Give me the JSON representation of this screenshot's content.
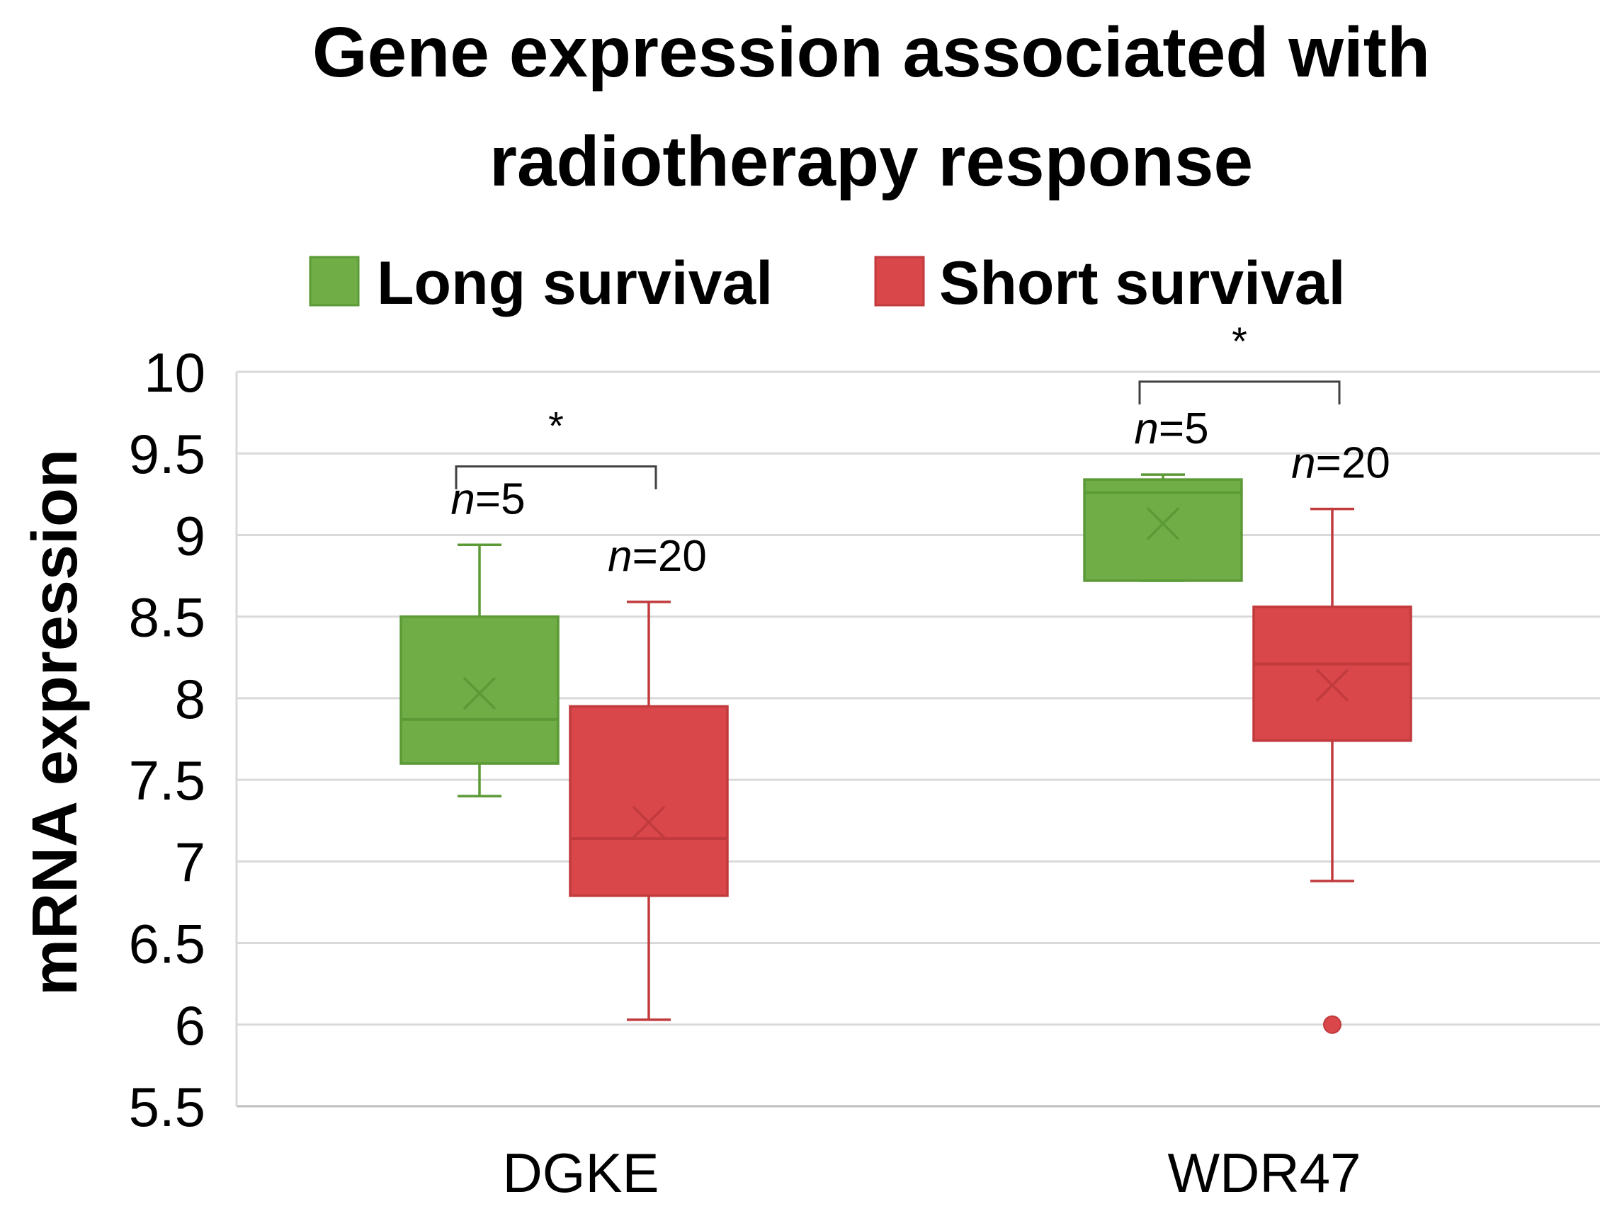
{
  "chart_data": {
    "type": "box",
    "title_lines": [
      "Gene expression associated with",
      "radiotherapy response"
    ],
    "xlabel": "",
    "ylabel": "mRNA expression",
    "ylim": [
      5.5,
      10
    ],
    "y_ticks": [
      "10",
      "9.5",
      "9",
      "8.5",
      "8",
      "7.5",
      "7",
      "6.5",
      "6",
      "5.5"
    ],
    "y_tick_values": [
      10,
      9.5,
      9,
      8.5,
      8,
      7.5,
      7,
      6.5,
      6,
      5.5
    ],
    "categories": [
      "DGKE",
      "WDR47"
    ],
    "grid": true,
    "legend_position": "top",
    "series": [
      {
        "name": "Long survival",
        "color": "#70ad47",
        "stroke": "#5b9a36",
        "boxes": [
          {
            "category": "DGKE",
            "n_label": "n",
            "n_value": "=5",
            "whisker_min": 7.4,
            "q1": 7.6,
            "median": 7.87,
            "mean": 8.03,
            "q3": 8.5,
            "whisker_max": 8.94,
            "outliers": []
          },
          {
            "category": "WDR47",
            "n_label": "n",
            "n_value": "=5",
            "whisker_min": 8.72,
            "q1": 8.72,
            "median": 9.26,
            "mean": 9.07,
            "q3": 9.34,
            "whisker_max": 9.37,
            "outliers": []
          }
        ]
      },
      {
        "name": "Short survival",
        "color": "#d9474a",
        "stroke": "#c13a3d",
        "boxes": [
          {
            "category": "DGKE",
            "n_label": "n",
            "n_value": "=20",
            "whisker_min": 6.03,
            "q1": 6.79,
            "median": 7.14,
            "mean": 7.24,
            "q3": 7.95,
            "whisker_max": 8.59,
            "outliers": []
          },
          {
            "category": "WDR47",
            "n_label": "n",
            "n_value": "=20",
            "whisker_min": 6.88,
            "q1": 7.74,
            "median": 8.21,
            "mean": 8.08,
            "q3": 8.56,
            "whisker_max": 9.16,
            "outliers": [
              6.0
            ]
          }
        ]
      }
    ],
    "significance": [
      {
        "category": "DGKE",
        "label": "*",
        "bracket_value": 9.42,
        "tick_bottom_value": 9.28
      },
      {
        "category": "WDR47",
        "label": "*",
        "bracket_value": 9.94,
        "tick_bottom_value": 9.8
      }
    ]
  }
}
